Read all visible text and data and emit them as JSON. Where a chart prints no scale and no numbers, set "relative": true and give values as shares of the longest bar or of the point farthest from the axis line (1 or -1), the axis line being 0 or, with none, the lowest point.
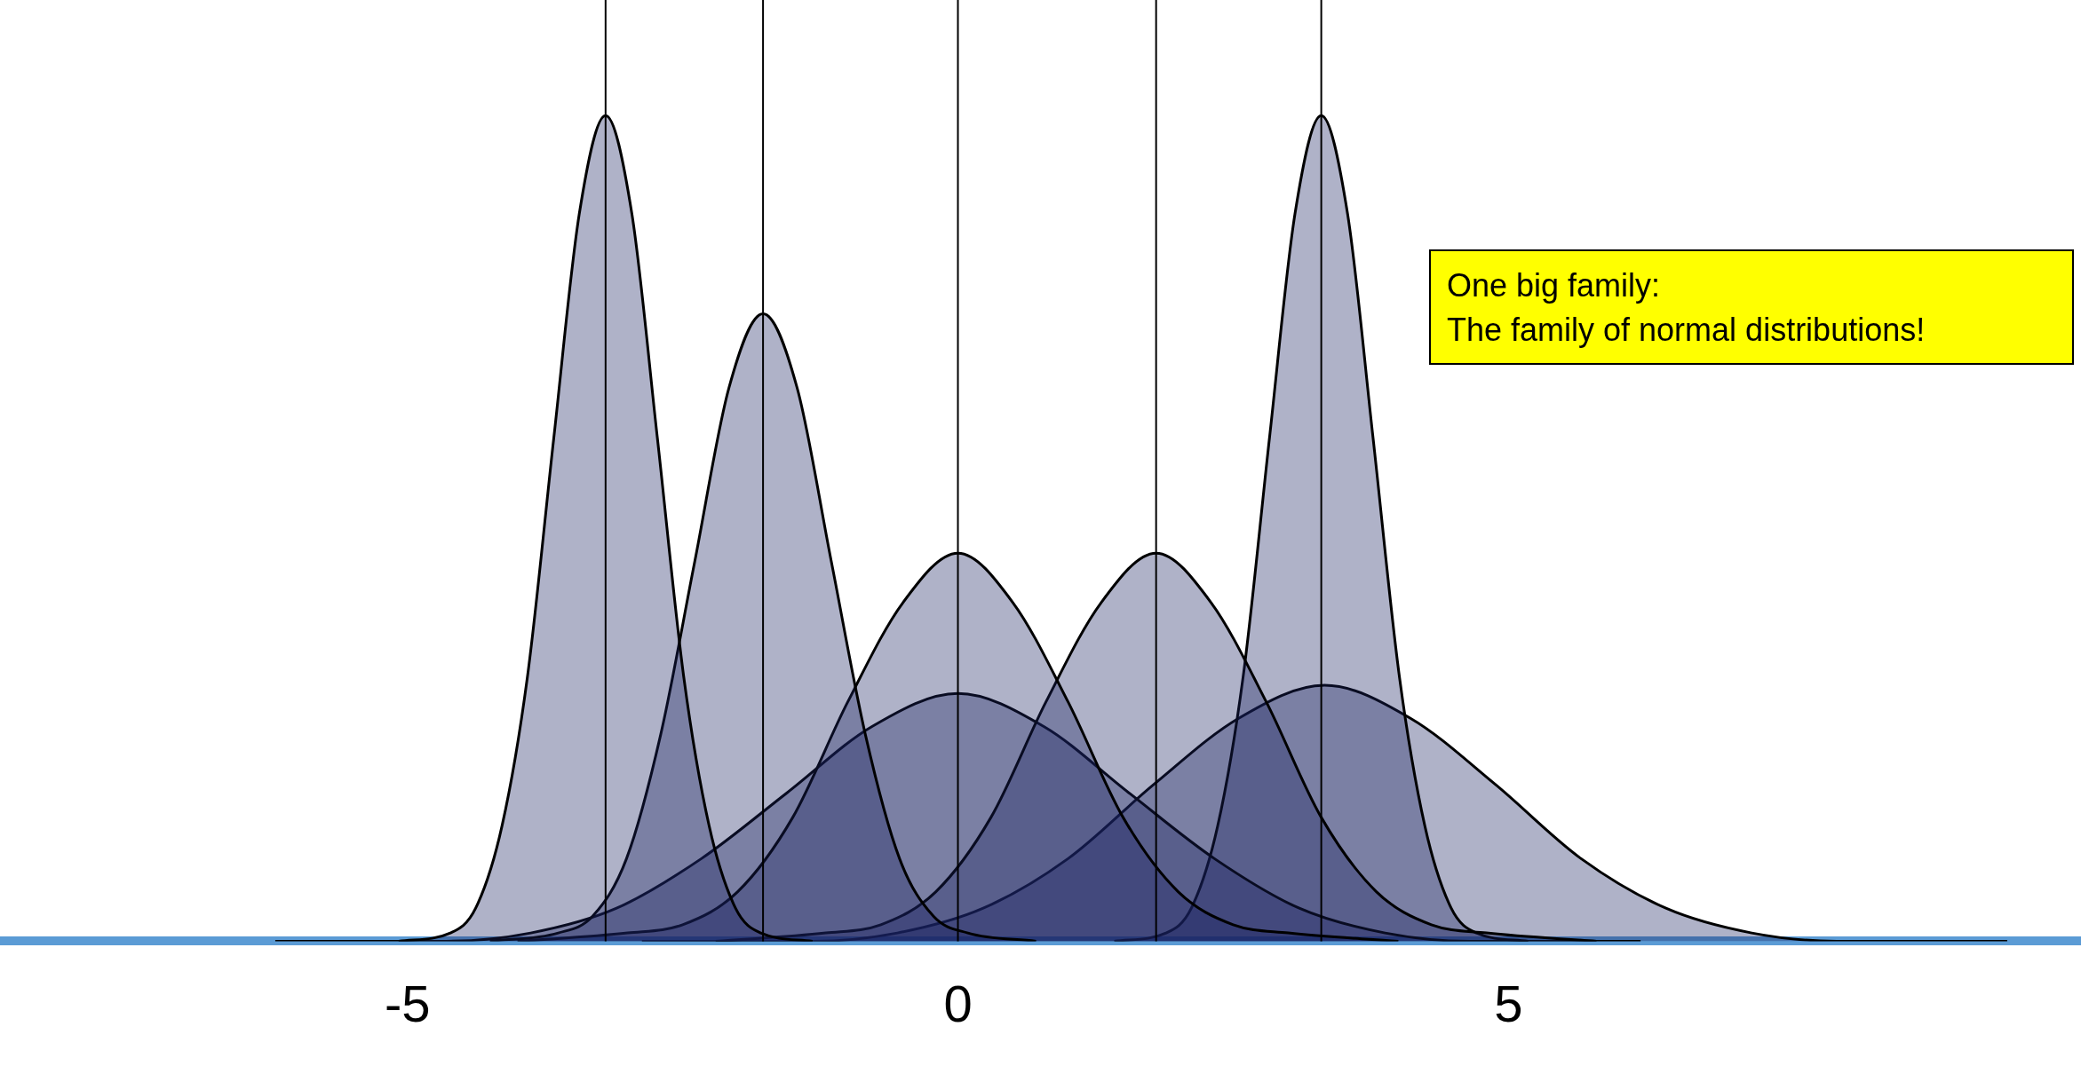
{
  "chart_data": {
    "type": "area",
    "relative": true,
    "xlim": [
      -8.7,
      10.2
    ],
    "xticks": [
      -5,
      0,
      5
    ],
    "annotations": [
      "One big family:\nThe family of normal distributions!"
    ],
    "ref_lines": [
      {
        "axis": "x",
        "value": -3.2,
        "color": "#000000"
      },
      {
        "axis": "x",
        "value": -1.77,
        "color": "#000000"
      },
      {
        "axis": "x",
        "value": 0,
        "color": "#000000"
      },
      {
        "axis": "x",
        "value": 1.8,
        "color": "#000000"
      },
      {
        "axis": "x",
        "value": 3.3,
        "color": "#000000"
      }
    ],
    "series": [
      {
        "color": "#1a2260",
        "x": [
          -5.08,
          -4.61,
          -4.38,
          -4.14,
          -3.91,
          -3.67,
          -3.44,
          -3.2,
          -2.96,
          -2.73,
          -2.49,
          -2.26,
          -2.02,
          -1.79,
          -1.32
        ],
        "values": [
          0,
          0.01,
          0.04,
          0.14,
          0.32,
          0.61,
          0.88,
          1,
          0.88,
          0.61,
          0.32,
          0.14,
          0.04,
          0.01,
          0
        ]
      },
      {
        "color": "#1a2260",
        "x": [
          -4.25,
          -3.63,
          -3.32,
          -3.01,
          -2.7,
          -2.39,
          -2.08,
          -1.77,
          -1.46,
          -1.15,
          -0.84,
          -0.53,
          -0.22,
          0.09,
          0.71
        ],
        "values": [
          0,
          0.01,
          0.03,
          0.1,
          0.25,
          0.46,
          0.67,
          0.76,
          0.67,
          0.46,
          0.25,
          0.1,
          0.03,
          0.01,
          0
        ]
      },
      {
        "color": "#1a2260",
        "x": [
          -4,
          -3,
          -2.5,
          -2,
          -1.5,
          -1,
          -0.5,
          0,
          0.5,
          1,
          1.5,
          2,
          2.5,
          3,
          4
        ],
        "values": [
          0,
          0.01,
          0.02,
          0.06,
          0.15,
          0.29,
          0.41,
          0.47,
          0.41,
          0.29,
          0.15,
          0.06,
          0.02,
          0.01,
          0
        ]
      },
      {
        "color": "#1a2260",
        "x": [
          -2.2,
          -1.2,
          -0.7,
          -0.2,
          0.3,
          0.8,
          1.3,
          1.8,
          2.3,
          2.8,
          3.3,
          3.8,
          4.3,
          4.8,
          5.8
        ],
        "values": [
          0,
          0.01,
          0.02,
          0.06,
          0.15,
          0.29,
          0.41,
          0.47,
          0.41,
          0.29,
          0.15,
          0.06,
          0.02,
          0.01,
          0
        ]
      },
      {
        "color": "#1a2260",
        "x": [
          -6.2,
          -4.65,
          -3.88,
          -3.1,
          -2.33,
          -1.55,
          -0.78,
          0,
          0.78,
          1.55,
          2.33,
          3.1,
          3.88,
          4.65,
          6.2
        ],
        "values": [
          0,
          0,
          0.01,
          0.04,
          0.1,
          0.18,
          0.26,
          0.3,
          0.26,
          0.18,
          0.1,
          0.04,
          0.01,
          0,
          0
        ]
      },
      {
        "color": "#1a2260",
        "x": [
          1.42,
          1.89,
          2.12,
          2.36,
          2.59,
          2.83,
          3.06,
          3.3,
          3.54,
          3.77,
          4.01,
          4.24,
          4.48,
          4.71,
          5.18
        ],
        "values": [
          0,
          0.01,
          0.04,
          0.14,
          0.32,
          0.61,
          0.88,
          1,
          0.88,
          0.61,
          0.32,
          0.14,
          0.04,
          0.01,
          0
        ]
      },
      {
        "color": "#1a2260",
        "x": [
          -2.87,
          -1.32,
          -0.55,
          0.23,
          1.0,
          1.78,
          2.55,
          3.33,
          4.11,
          4.88,
          5.66,
          6.43,
          7.21,
          7.98,
          9.53
        ],
        "values": [
          0,
          0,
          0.01,
          0.04,
          0.1,
          0.19,
          0.27,
          0.31,
          0.27,
          0.19,
          0.1,
          0.04,
          0.01,
          0,
          0
        ]
      }
    ]
  }
}
